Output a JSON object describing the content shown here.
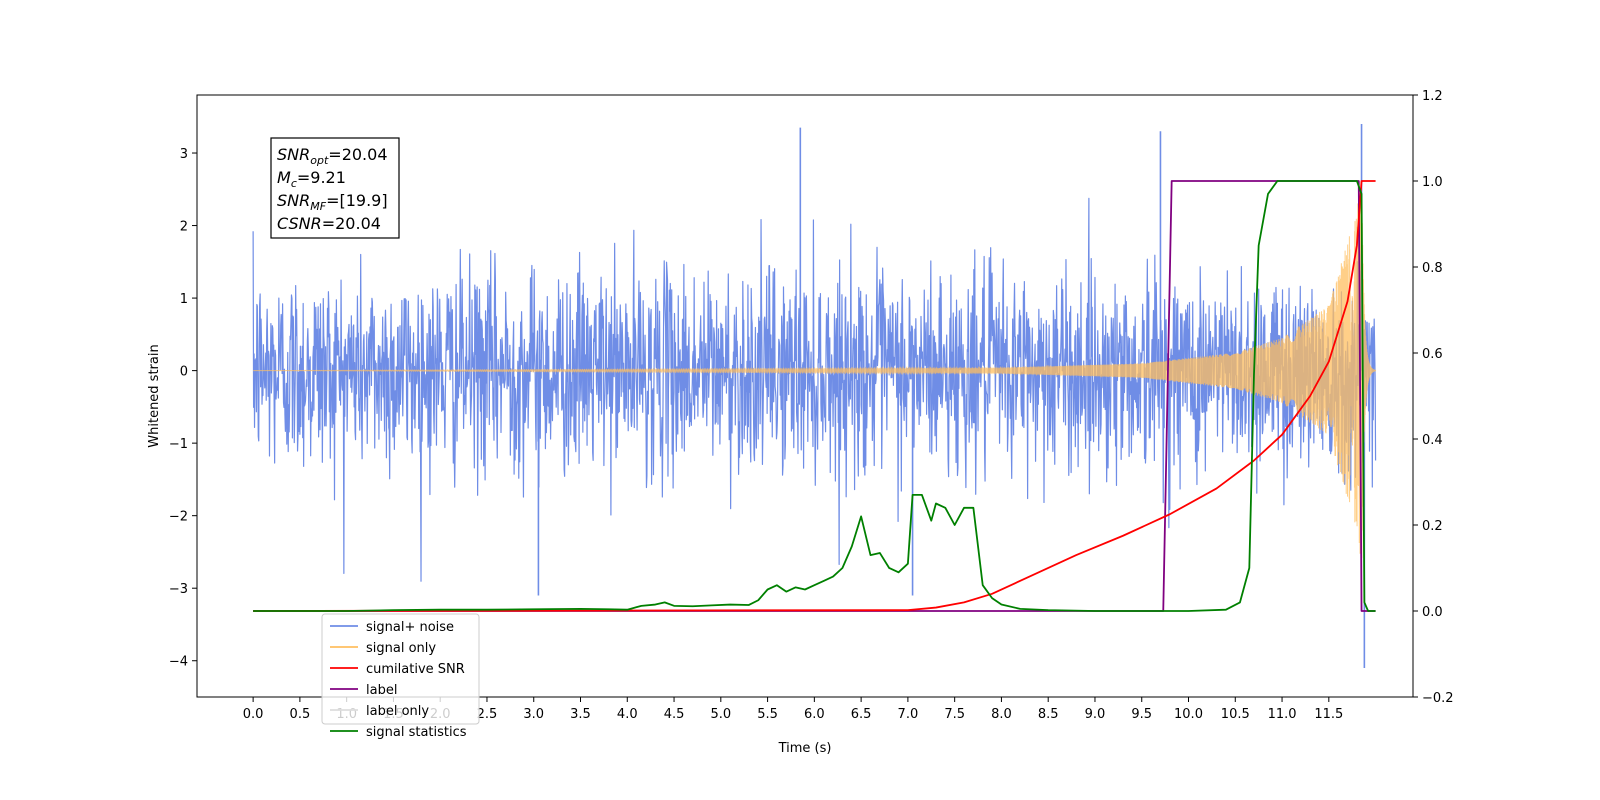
{
  "chart_data": {
    "type": "line",
    "xlabel": "Time (s)",
    "ylabel": "Whitened strain",
    "xlim": [
      -0.6,
      12.4
    ],
    "ylim_left": [
      -4.5,
      3.8
    ],
    "ylim_right": [
      -0.2,
      1.2
    ],
    "x_ticks": [
      0.0,
      0.5,
      1.0,
      1.5,
      2.0,
      2.5,
      3.0,
      3.5,
      4.0,
      4.5,
      5.0,
      5.5,
      6.0,
      6.5,
      7.0,
      7.5,
      8.0,
      8.5,
      9.0,
      9.5,
      10.0,
      10.5,
      11.0,
      11.5
    ],
    "x_tick_labels": [
      "0.0",
      "0.5",
      "1.0",
      "1.5",
      "2.0",
      "2.5",
      "3.0",
      "3.5",
      "4.0",
      "4.5",
      "5.0",
      "5.5",
      "6.0",
      "6.5",
      "7.0",
      "7.5",
      "8.0",
      "8.5",
      "9.0",
      "9.5",
      "10.0",
      "10.5",
      "11.0",
      "11.5"
    ],
    "y_left_ticks": [
      3,
      2,
      1,
      0,
      -1,
      -2,
      -3,
      -4
    ],
    "y_left_tick_labels": [
      "3",
      "2",
      "1",
      "0",
      "−1",
      "−2",
      "−3",
      "−4"
    ],
    "y_right_ticks": [
      1.2,
      1.0,
      0.8,
      0.6,
      0.4,
      0.2,
      0.0,
      -0.2
    ],
    "y_right_tick_labels": [
      "1.2",
      "1.0",
      "0.8",
      "0.6",
      "0.4",
      "0.2",
      "0.0",
      "−0.2"
    ],
    "grid": false,
    "legend_position": "bottom-left",
    "annotation": {
      "lines": [
        {
          "base": "SNR",
          "sub": "opt",
          "value": "=20.04"
        },
        {
          "base": "M",
          "sub": "c",
          "value": "=9.21"
        },
        {
          "base": "SNR",
          "sub": "MF",
          "value": "=[19.9]"
        },
        {
          "base": "CSNR",
          "sub": "",
          "value": "=20.04"
        }
      ]
    },
    "series": [
      {
        "name": "signal+ noise",
        "axis": "left",
        "color": "#6f8de6",
        "kind": "noise",
        "x_range": [
          0.0,
          12.0
        ],
        "typical_envelope": [
          -1.8,
          1.8
        ],
        "spikes": [
          [
            5.85,
            3.35
          ],
          [
            9.7,
            3.3
          ],
          [
            11.85,
            3.4
          ],
          [
            11.88,
            -4.1
          ],
          [
            3.05,
            -3.1
          ],
          [
            7.05,
            -3.1
          ]
        ]
      },
      {
        "name": "signal only",
        "axis": "left",
        "color": "#ffbf60",
        "kind": "chirp",
        "x_range": [
          0.0,
          12.0
        ],
        "x_merger": 11.85,
        "amplitude_at": [
          [
            0.0,
            0.0
          ],
          [
            8.0,
            0.04
          ],
          [
            9.5,
            0.1
          ],
          [
            10.5,
            0.25
          ],
          [
            11.0,
            0.45
          ],
          [
            11.5,
            0.9
          ],
          [
            11.8,
            2.2
          ],
          [
            11.85,
            2.8
          ]
        ]
      },
      {
        "name": "cumilative SNR",
        "axis": "right",
        "color": "#ff0000",
        "x": [
          0.0,
          7.0,
          7.3,
          7.6,
          7.9,
          8.3,
          8.8,
          9.3,
          9.8,
          10.3,
          10.7,
          11.0,
          11.3,
          11.5,
          11.7,
          11.8,
          11.85,
          12.0
        ],
        "y": [
          0.0,
          0.002,
          0.008,
          0.02,
          0.04,
          0.08,
          0.13,
          0.175,
          0.225,
          0.285,
          0.35,
          0.41,
          0.5,
          0.58,
          0.72,
          0.85,
          1.0,
          1.0
        ]
      },
      {
        "name": "label",
        "axis": "right",
        "color": "#800080",
        "x": [
          0.0,
          9.73,
          9.82,
          11.82,
          11.85,
          11.88,
          12.0
        ],
        "y": [
          0.0,
          0.0,
          1.0,
          1.0,
          0.0,
          0.0,
          0.0
        ]
      },
      {
        "name": "label only",
        "axis": "right",
        "color": "#dddddd",
        "x": [],
        "y": []
      },
      {
        "name": "signal statistics",
        "axis": "right",
        "color": "#008000",
        "x": [
          0.0,
          0.5,
          1.0,
          1.5,
          2.0,
          2.5,
          3.0,
          3.5,
          3.8,
          4.0,
          4.15,
          4.3,
          4.4,
          4.5,
          4.7,
          4.9,
          5.1,
          5.3,
          5.4,
          5.5,
          5.6,
          5.7,
          5.8,
          5.9,
          6.0,
          6.1,
          6.2,
          6.3,
          6.4,
          6.5,
          6.6,
          6.7,
          6.8,
          6.9,
          7.0,
          7.05,
          7.15,
          7.25,
          7.3,
          7.4,
          7.5,
          7.6,
          7.7,
          7.8,
          7.9,
          8.0,
          8.2,
          8.5,
          9.0,
          9.5,
          10.0,
          10.4,
          10.55,
          10.65,
          10.7,
          10.75,
          10.85,
          10.95,
          11.1,
          11.3,
          11.5,
          11.7,
          11.8,
          11.85,
          11.88,
          11.92,
          12.0
        ],
        "y": [
          0.0,
          0.0,
          0.0,
          0.002,
          0.003,
          0.003,
          0.004,
          0.005,
          0.004,
          0.003,
          0.012,
          0.015,
          0.02,
          0.012,
          0.011,
          0.013,
          0.015,
          0.014,
          0.025,
          0.05,
          0.06,
          0.045,
          0.055,
          0.05,
          0.06,
          0.07,
          0.08,
          0.1,
          0.15,
          0.22,
          0.13,
          0.135,
          0.1,
          0.09,
          0.11,
          0.27,
          0.27,
          0.21,
          0.25,
          0.24,
          0.2,
          0.24,
          0.24,
          0.06,
          0.03,
          0.015,
          0.005,
          0.002,
          0.0,
          0.0,
          0.0,
          0.003,
          0.02,
          0.1,
          0.55,
          0.85,
          0.97,
          1.0,
          1.0,
          1.0,
          1.0,
          1.0,
          1.0,
          0.97,
          0.02,
          0.0,
          0.0
        ]
      }
    ]
  }
}
